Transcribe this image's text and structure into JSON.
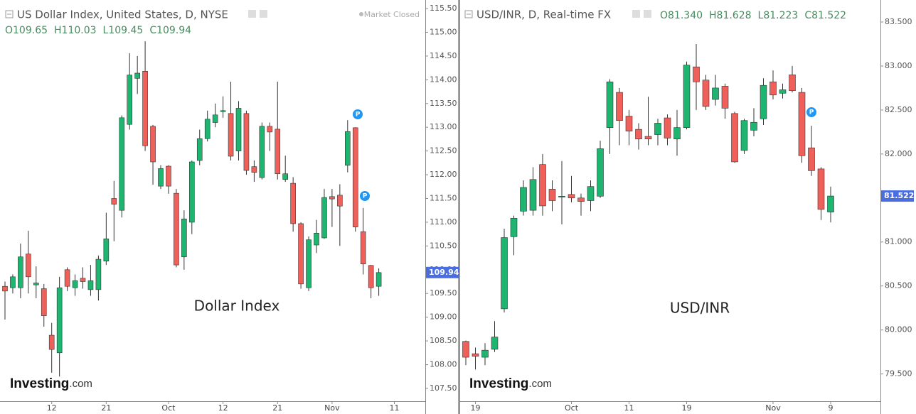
{
  "chart_data": [
    {
      "type": "candlestick",
      "title": "US Dollar Index, United States, D, NYSE",
      "status": "Market Closed",
      "ohlc_labels": [
        "O109.65",
        "H110.03",
        "L109.45",
        "C109.94"
      ],
      "watermark": "Dollar Index",
      "logo": "Investing",
      "logo_suffix": ".com",
      "price_label": "109.94",
      "up_color": "#1db56f",
      "down_color": "#f0605a",
      "open": [
        109.65,
        109.62,
        109.62,
        110.33,
        109.68,
        109.6,
        108.62,
        108.25,
        110.0,
        109.62,
        109.82,
        109.58,
        109.58,
        110.18,
        111.5,
        111.25,
        113.06,
        114.03,
        114.18,
        113.02,
        111.76,
        112.18,
        111.61,
        110.27,
        111.0,
        112.3,
        112.76,
        113.1,
        113.33,
        113.29,
        112.5,
        113.29,
        112.17,
        111.94,
        113.02,
        112.96,
        111.9,
        111.82,
        110.97,
        109.62,
        110.52,
        110.67,
        111.54,
        111.57,
        112.2,
        112.99,
        110.8,
        110.09,
        109.65
      ],
      "high": [
        109.75,
        109.9,
        110.55,
        110.82,
        110.07,
        109.7,
        108.88,
        109.85,
        110.05,
        109.9,
        110.05,
        110.1,
        110.3,
        111.2,
        111.87,
        113.25,
        114.56,
        114.5,
        114.81,
        113.05,
        112.2,
        112.2,
        111.7,
        111.25,
        112.3,
        112.95,
        113.35,
        113.5,
        113.65,
        113.96,
        113.55,
        113.35,
        112.3,
        113.1,
        113.1,
        113.96,
        112.4,
        111.95,
        111.0,
        110.7,
        111.05,
        111.7,
        111.7,
        111.8,
        113.15,
        113.0,
        111.3,
        110.1,
        110.03
      ],
      "low": [
        108.95,
        109.5,
        109.4,
        109.5,
        109.4,
        108.8,
        107.83,
        107.75,
        109.55,
        109.45,
        109.6,
        109.45,
        109.35,
        110.1,
        110.6,
        111.1,
        112.95,
        113.7,
        112.5,
        111.79,
        111.7,
        111.6,
        110.05,
        110.0,
        110.75,
        112.2,
        112.7,
        113.0,
        113.2,
        112.3,
        112.3,
        112.0,
        111.85,
        111.9,
        112.5,
        111.9,
        111.85,
        110.8,
        109.6,
        109.55,
        110.35,
        110.65,
        110.9,
        110.5,
        112.05,
        110.8,
        109.9,
        109.4,
        109.45
      ],
      "close": [
        109.55,
        109.85,
        110.27,
        109.85,
        109.72,
        109.03,
        108.32,
        109.62,
        109.65,
        109.77,
        109.75,
        109.77,
        110.22,
        110.65,
        111.38,
        113.2,
        114.1,
        114.14,
        112.61,
        112.27,
        112.13,
        111.76,
        110.1,
        111.07,
        112.27,
        112.76,
        113.17,
        113.26,
        113.35,
        112.39,
        113.4,
        112.09,
        112.05,
        113.02,
        112.9,
        112.02,
        112.02,
        110.97,
        109.7,
        110.63,
        110.77,
        111.52,
        111.49,
        111.34,
        112.91,
        110.9,
        110.12,
        109.62,
        109.94
      ],
      "ylim": [
        107.23,
        115.68
      ],
      "yticks": [
        {
          "value": 107.5,
          "label": "107.50"
        },
        {
          "value": 108,
          "label": "108.00"
        },
        {
          "value": 108.5,
          "label": "108.50"
        },
        {
          "value": 109,
          "label": "109.00"
        },
        {
          "value": 109.5,
          "label": "109.50"
        },
        {
          "value": 110,
          "label": "110.00"
        },
        {
          "value": 110.5,
          "label": "110.50"
        },
        {
          "value": 111,
          "label": "111.00"
        },
        {
          "value": 111.5,
          "label": "111.50"
        },
        {
          "value": 112,
          "label": "112.00"
        },
        {
          "value": 112.5,
          "label": "112.50"
        },
        {
          "value": 113,
          "label": "113.00"
        },
        {
          "value": 113.5,
          "label": "113.50"
        },
        {
          "value": 114,
          "label": "114.00"
        },
        {
          "value": 114.5,
          "label": "114.50"
        },
        {
          "value": 115,
          "label": "115.00"
        },
        {
          "value": 115.5,
          "label": "115.50"
        }
      ],
      "xticks": [
        {
          "value": 6,
          "label": "12"
        },
        {
          "value": 13,
          "label": "21"
        },
        {
          "value": 21,
          "label": "Oct"
        },
        {
          "value": 28,
          "label": "12"
        },
        {
          "value": 35,
          "label": "21"
        },
        {
          "value": 42,
          "label": "Nov"
        },
        {
          "value": 50,
          "label": "11"
        }
      ]
    },
    {
      "type": "candlestick",
      "title": "USD/INR, D, Real-time FX",
      "ohlc_labels": [
        "O81.340",
        "H81.628",
        "L81.223",
        "C81.522"
      ],
      "watermark": "USD/INR",
      "logo": "Investing",
      "logo_suffix": ".com",
      "price_label": "81.522",
      "up_color": "#1db56f",
      "down_color": "#f0605a",
      "open": [
        79.87,
        79.73,
        79.69,
        79.78,
        80.24,
        81.06,
        81.35,
        81.36,
        81.88,
        81.6,
        81.51,
        81.54,
        81.5,
        81.47,
        81.52,
        82.3,
        82.7,
        82.43,
        82.28,
        82.2,
        82.22,
        82.41,
        82.17,
        82.3,
        82.99,
        82.84,
        82.62,
        82.77,
        82.46,
        82.04,
        82.27,
        82.4,
        82.82,
        82.69,
        82.9,
        82.7,
        82.07,
        81.83,
        81.34
      ],
      "high": [
        79.88,
        79.8,
        79.85,
        80.1,
        81.15,
        81.3,
        81.7,
        81.85,
        82.0,
        81.7,
        81.92,
        81.75,
        81.55,
        81.7,
        82.15,
        82.85,
        82.75,
        82.5,
        82.35,
        82.65,
        82.4,
        82.45,
        82.5,
        83.05,
        83.25,
        82.9,
        82.9,
        82.8,
        82.48,
        82.4,
        82.52,
        82.86,
        82.95,
        82.8,
        83.0,
        82.75,
        82.32,
        81.85,
        81.628
      ],
      "low": [
        79.6,
        79.55,
        79.6,
        79.75,
        80.2,
        80.85,
        81.3,
        81.3,
        81.3,
        81.35,
        81.2,
        81.45,
        81.3,
        81.35,
        81.5,
        82.0,
        82.1,
        82.1,
        82.05,
        82.1,
        82.1,
        82.1,
        81.98,
        82.28,
        82.5,
        82.5,
        82.55,
        82.4,
        81.9,
        82.0,
        82.2,
        82.33,
        82.62,
        82.63,
        82.7,
        81.9,
        81.75,
        81.25,
        81.223
      ],
      "close": [
        79.69,
        79.7,
        79.77,
        79.92,
        81.05,
        81.27,
        81.62,
        81.71,
        81.41,
        81.47,
        81.52,
        81.5,
        81.46,
        81.63,
        82.06,
        82.82,
        82.38,
        82.26,
        82.17,
        82.17,
        82.35,
        82.18,
        82.3,
        83.01,
        82.82,
        82.54,
        82.75,
        82.52,
        81.91,
        82.38,
        82.36,
        82.78,
        82.67,
        82.73,
        82.72,
        81.98,
        81.81,
        81.37,
        81.522
      ],
      "ylim": [
        79.19,
        83.75
      ],
      "yticks": [
        {
          "value": 79.5,
          "label": "79.500"
        },
        {
          "value": 80,
          "label": "80.000"
        },
        {
          "value": 80.5,
          "label": "80.500"
        },
        {
          "value": 81,
          "label": "81.000"
        },
        {
          "value": 81.5,
          "label": "81.500"
        },
        {
          "value": 82,
          "label": "82.000"
        },
        {
          "value": 82.5,
          "label": "82.500"
        },
        {
          "value": 83,
          "label": "83.000"
        },
        {
          "value": 83.5,
          "label": "83.500"
        }
      ],
      "xticks": [
        {
          "value": 1,
          "label": "19"
        },
        {
          "value": 11,
          "label": "Oct"
        },
        {
          "value": 17,
          "label": "11"
        },
        {
          "value": 23,
          "label": "19"
        },
        {
          "value": 32,
          "label": "Nov"
        },
        {
          "value": 38,
          "label": "9"
        }
      ]
    }
  ]
}
